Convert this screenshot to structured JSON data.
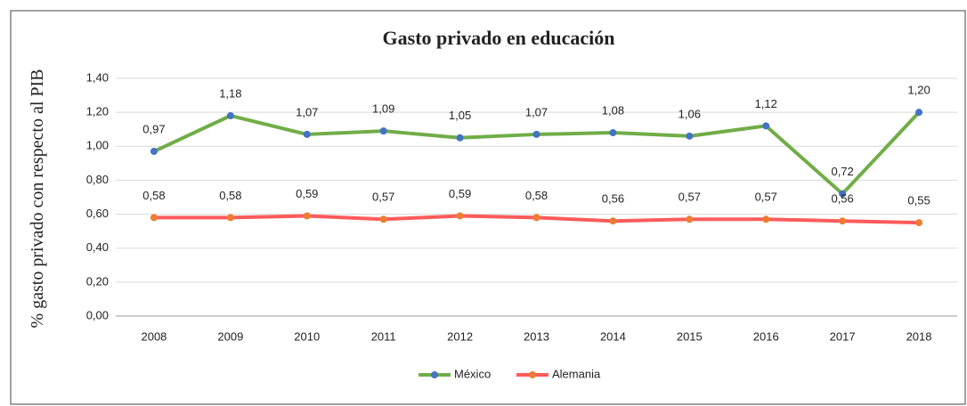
{
  "chart_data": {
    "type": "line",
    "title": "Gasto privado en educación",
    "y_label": "% gasto privado con respecto al PIB",
    "categories": [
      "2008",
      "2009",
      "2010",
      "2011",
      "2012",
      "2013",
      "2014",
      "2015",
      "2016",
      "2017",
      "2018"
    ],
    "series": [
      {
        "name": "México",
        "color": "#70ad47",
        "marker_color": "#4472c4",
        "values": [
          0.97,
          1.18,
          1.07,
          1.09,
          1.05,
          1.07,
          1.08,
          1.06,
          1.12,
          0.72,
          1.2
        ],
        "value_labels": [
          "0,97",
          "1,18",
          "1,07",
          "1,09",
          "1,05",
          "1,07",
          "1,08",
          "1,06",
          "1,12",
          "0,72",
          "1,20"
        ]
      },
      {
        "name": "Alemania",
        "color": "#ff5b5b",
        "marker_color": "#ed7d31",
        "values": [
          0.58,
          0.58,
          0.59,
          0.57,
          0.59,
          0.58,
          0.56,
          0.57,
          0.57,
          0.56,
          0.55
        ],
        "value_labels": [
          "0,58",
          "0,58",
          "0,59",
          "0,57",
          "0,59",
          "0,58",
          "0,56",
          "0,57",
          "0,57",
          "0,56",
          "0,55"
        ]
      }
    ],
    "ylim": [
      0,
      1.4
    ],
    "yticks": [
      {
        "value": 0,
        "label": "0,00"
      },
      {
        "value": 0.2,
        "label": "0,20"
      },
      {
        "value": 0.4,
        "label": "0,40"
      },
      {
        "value": 0.6,
        "label": "0,60"
      },
      {
        "value": 0.8,
        "label": "0,80"
      },
      {
        "value": 1.0,
        "label": "1,00"
      },
      {
        "value": 1.2,
        "label": "1,20"
      },
      {
        "value": 1.4,
        "label": "1,40"
      }
    ],
    "grid": true,
    "legend": "bottom"
  }
}
